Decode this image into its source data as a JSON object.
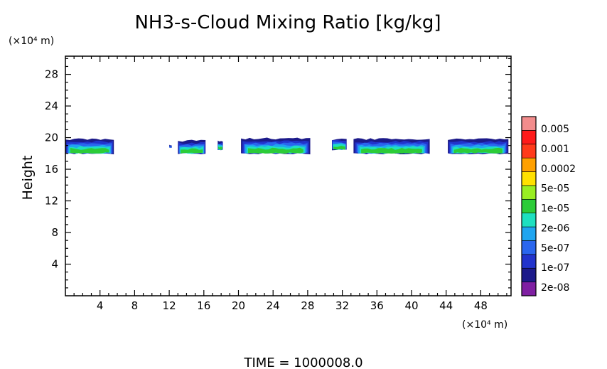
{
  "chart_data": {
    "type": "contour",
    "title": "NH3-s-Cloud Mixing Ratio [kg/kg]",
    "ylabel": "Height",
    "y_unit": "(×10⁴ m)",
    "x_unit": "(×10⁴ m)",
    "footer": "TIME  =  1000008.0",
    "xlim": [
      0,
      51.5
    ],
    "ylim": [
      0,
      30.3
    ],
    "x_ticks": [
      4,
      8,
      12,
      16,
      20,
      24,
      28,
      32,
      36,
      40,
      44,
      48
    ],
    "y_ticks": [
      4,
      8,
      12,
      16,
      20,
      24,
      28
    ],
    "colorbar": {
      "labels": [
        "0.005",
        "0.001",
        "0.0002",
        "5e-05",
        "1e-05",
        "2e-06",
        "5e-07",
        "1e-07",
        "2e-08"
      ],
      "colors": [
        "#7f1fa2",
        "#1c1a8a",
        "#2233cc",
        "#2a66ee",
        "#1fa5f0",
        "#1ee0c0",
        "#2ccc38",
        "#99ee22",
        "#ffe000",
        "#ffa000",
        "#ff3a1a",
        "#ff1a1a",
        "#f28c8c"
      ]
    },
    "cloud_layers": [
      {
        "x": [
          0.0,
          5.6
        ],
        "y": [
          18.0,
          19.8
        ]
      },
      {
        "x": [
          12.0,
          12.3
        ],
        "y": [
          18.8,
          19.0
        ]
      },
      {
        "x": [
          13.0,
          16.2
        ],
        "y": [
          18.0,
          19.6
        ]
      },
      {
        "x": [
          17.6,
          18.2
        ],
        "y": [
          18.5,
          19.5
        ]
      },
      {
        "x": [
          20.3,
          28.3
        ],
        "y": [
          18.0,
          19.9
        ]
      },
      {
        "x": [
          30.8,
          32.5
        ],
        "y": [
          18.5,
          19.8
        ]
      },
      {
        "x": [
          33.3,
          42.1
        ],
        "y": [
          18.0,
          19.8
        ]
      },
      {
        "x": [
          44.2,
          51.2
        ],
        "y": [
          18.0,
          19.8
        ]
      }
    ]
  }
}
